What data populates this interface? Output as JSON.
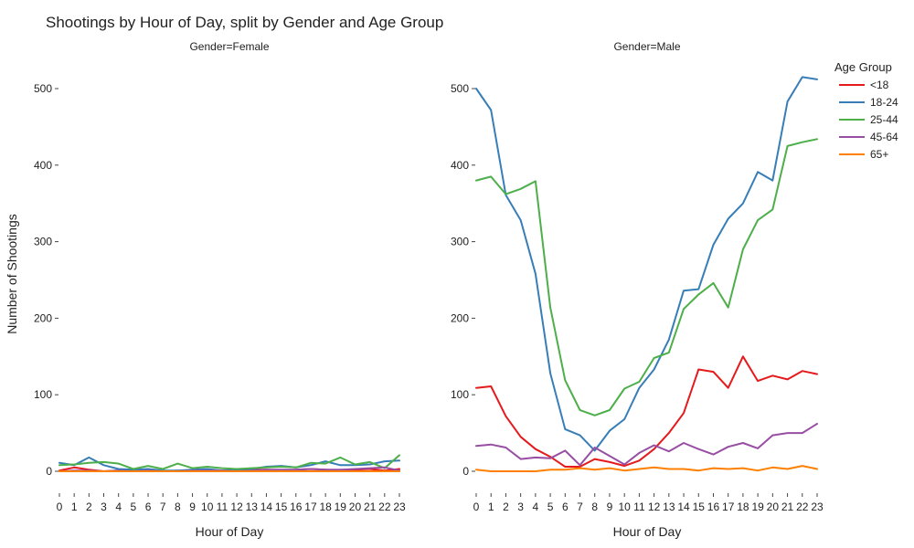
{
  "chart_data": {
    "type": "line",
    "title": "Shootings by Hour of Day, split by Gender and Age Group",
    "xlabel": "Hour of Day",
    "ylabel": "Number of Shootings",
    "x": [
      0,
      1,
      2,
      3,
      4,
      5,
      6,
      7,
      8,
      9,
      10,
      11,
      12,
      13,
      14,
      15,
      16,
      17,
      18,
      19,
      20,
      21,
      22,
      23
    ],
    "ylim": [
      -30,
      530
    ],
    "yticks": [
      0,
      100,
      200,
      300,
      400,
      500
    ],
    "grid": false,
    "legend": {
      "title": "Age Group",
      "position": "top-right",
      "entries": [
        "<18",
        "18-24",
        "25-44",
        "45-64",
        "65+"
      ]
    },
    "colors": {
      "<18": "#e41a1c",
      "18-24": "#377eb8",
      "25-44": "#4daf4a",
      "45-64": "#984ea3",
      "65+": "#ff7f00"
    },
    "facets": [
      {
        "title": "Gender=Female",
        "series": [
          {
            "name": "<18",
            "values": [
              1,
              5,
              2,
              0,
              1,
              1,
              1,
              0,
              1,
              0,
              1,
              1,
              1,
              2,
              2,
              1,
              2,
              3,
              2,
              1,
              2,
              3,
              1,
              3
            ]
          },
          {
            "name": "18-24",
            "values": [
              11,
              8,
              18,
              8,
              3,
              2,
              3,
              1,
              1,
              2,
              3,
              1,
              2,
              3,
              6,
              7,
              5,
              8,
              13,
              8,
              8,
              9,
              13,
              14
            ]
          },
          {
            "name": "25-44",
            "values": [
              8,
              9,
              11,
              12,
              10,
              3,
              7,
              3,
              10,
              4,
              6,
              4,
              3,
              4,
              5,
              6,
              5,
              11,
              10,
              18,
              9,
              12,
              4,
              21
            ]
          },
          {
            "name": "45-64",
            "values": [
              0,
              1,
              1,
              0,
              1,
              0,
              1,
              0,
              0,
              1,
              1,
              1,
              0,
              1,
              2,
              2,
              2,
              3,
              2,
              2,
              3,
              4,
              5,
              1
            ]
          },
          {
            "name": "65+",
            "values": [
              0,
              0,
              0,
              0,
              0,
              0,
              0,
              0,
              0,
              0,
              0,
              0,
              0,
              0,
              0,
              0,
              0,
              0,
              0,
              0,
              0,
              0,
              0,
              0
            ]
          }
        ]
      },
      {
        "title": "Gender=Male",
        "series": [
          {
            "name": "<18",
            "values": [
              109,
              111,
              72,
              45,
              29,
              19,
              6,
              6,
              16,
              12,
              7,
              14,
              29,
              50,
              76,
              133,
              130,
              109,
              150,
              118,
              125,
              120,
              131,
              127
            ]
          },
          {
            "name": "18-24",
            "values": [
              500,
              472,
              361,
              328,
              258,
              128,
              55,
              47,
              27,
              53,
              68,
              109,
              133,
              172,
              236,
              238,
              296,
              330,
              350,
              391,
              380,
              483,
              515,
              512
            ]
          },
          {
            "name": "25-44",
            "values": [
              380,
              385,
              362,
              369,
              379,
              214,
              119,
              80,
              73,
              80,
              108,
              117,
              148,
              155,
              212,
              231,
              246,
              214,
              290,
              328,
              342,
              425,
              430,
              434
            ]
          },
          {
            "name": "45-64",
            "values": [
              33,
              35,
              31,
              16,
              18,
              17,
              27,
              8,
              31,
              20,
              9,
              24,
              34,
              26,
              37,
              29,
              22,
              32,
              37,
              30,
              47,
              50,
              50,
              62
            ]
          },
          {
            "name": "65+",
            "values": [
              2,
              0,
              0,
              0,
              0,
              2,
              2,
              4,
              2,
              4,
              1,
              3,
              5,
              3,
              3,
              1,
              4,
              3,
              4,
              1,
              5,
              3,
              7,
              3
            ]
          }
        ]
      }
    ]
  }
}
